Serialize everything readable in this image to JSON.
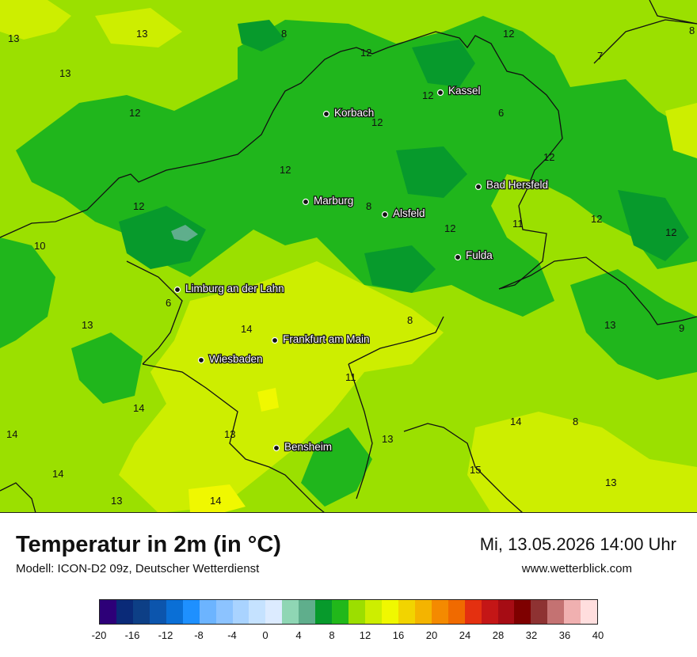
{
  "map": {
    "cities": [
      {
        "name": "Kassel"
      },
      {
        "name": "Korbach"
      },
      {
        "name": "Bad Hersfeld"
      },
      {
        "name": "Marburg"
      },
      {
        "name": "Alsfeld"
      },
      {
        "name": "Fulda"
      },
      {
        "name": "Limburg an der Lahn"
      },
      {
        "name": "Frankfurt am Main"
      },
      {
        "name": "Wiesbaden"
      },
      {
        "name": "Bensheim"
      }
    ],
    "values": [
      "13",
      "13",
      "8",
      "12",
      "8",
      "12",
      "7",
      "13",
      "12",
      "12",
      "12",
      "6",
      "12",
      "12",
      "12",
      "12",
      "8",
      "12",
      "11",
      "12",
      "10",
      "6",
      "13",
      "14",
      "8",
      "13",
      "9",
      "11",
      "14",
      "14",
      "8",
      "14",
      "13",
      "13",
      "14",
      "15",
      "13",
      "13",
      "14"
    ]
  },
  "footer": {
    "title": "Temperatur in 2m (in °C)",
    "subtitle": "Modell: ICON-D2 09z, Deutscher Wetterdienst",
    "datetime": "Mi, 13.05.2026 14:00 Uhr",
    "website": "www.wetterblick.com"
  },
  "legend": {
    "colors": [
      "#2d0078",
      "#0a2a78",
      "#0d3f86",
      "#0c55ad",
      "#0a6fd6",
      "#1e90ff",
      "#6cb4ff",
      "#8cc3ff",
      "#a9d3ff",
      "#c5e2ff",
      "#dcebff",
      "#8fd6b4",
      "#5fae8c",
      "#079a2c",
      "#21b81a",
      "#9cde00",
      "#cdee00",
      "#f0f800",
      "#f2d400",
      "#f4b400",
      "#f48a00",
      "#f06a00",
      "#e43010",
      "#c41616",
      "#a60c14",
      "#7e0000",
      "#8e3232",
      "#c47272",
      "#f0b0b0",
      "#ffdede"
    ],
    "ticks": [
      "-20",
      "-16",
      "-12",
      "-8",
      "-4",
      "0",
      "4",
      "8",
      "12",
      "16",
      "20",
      "24",
      "28",
      "32",
      "36",
      "40"
    ]
  }
}
